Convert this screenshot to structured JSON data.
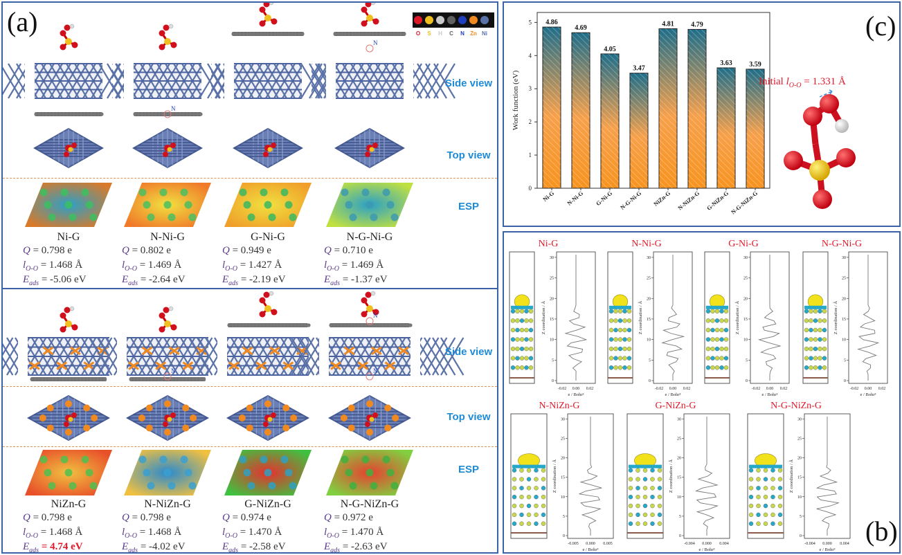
{
  "panel_a": {
    "letter": "(a)",
    "legend": {
      "elements": [
        {
          "symbol": "O",
          "color": "#e0192a"
        },
        {
          "symbol": "S",
          "color": "#f0c020"
        },
        {
          "symbol": "H",
          "color": "#c9c9c9"
        },
        {
          "symbol": "C",
          "color": "#606060"
        },
        {
          "symbol": "N",
          "color": "#1f3fbf"
        },
        {
          "symbol": "Zn",
          "color": "#f08a20"
        },
        {
          "symbol": "Ni",
          "color": "#5a72a8"
        }
      ]
    },
    "side_view_label": "Side view",
    "top_view_label": "Top view",
    "esp_label": "ESP",
    "n_marker": "N",
    "top_group": [
      {
        "name": "Ni-G",
        "q": "= 0.798 e",
        "l": "= 1.468 Å",
        "e": "= -5.06 eV",
        "hl": false
      },
      {
        "name": "N-Ni-G",
        "q": "= 0.802 e",
        "l": "= 1.469 Å",
        "e": "= -2.64 eV",
        "hl": false
      },
      {
        "name": "G-Ni-G",
        "q": "= 0.949 e",
        "l": "= 1.427 Å",
        "e": "= -2.19 eV",
        "hl": false
      },
      {
        "name": "N-G-Ni-G",
        "q": "= 0.710 e",
        "l": "= 1.469 Å",
        "e": "= -1.37 eV",
        "hl": false
      }
    ],
    "bottom_group": [
      {
        "name": "NiZn-G",
        "q": "= 0.798 e",
        "l": "= 1.468 Å",
        "e": "= 4.74 eV",
        "hl": true
      },
      {
        "name": "N-NiZn-G",
        "q": "= 0.798 e",
        "l": "= 1.468 Å",
        "e": "= -4.02 eV",
        "hl": false
      },
      {
        "name": "G-NiZn-G",
        "q": "= 0.974 e",
        "l": "= 1.470 Å",
        "e": "= -2.58 eV",
        "hl": false
      },
      {
        "name": "N-G-NiZn-G",
        "q": "= 0.972 e",
        "l": "= 1.470 Å",
        "e": "= -2.63 eV",
        "hl": false
      }
    ],
    "sym_q": "Q",
    "sym_l": "l",
    "sub_l": "O-O",
    "sym_e": "E",
    "sub_e": "ads"
  },
  "panel_c": {
    "letter": "(c)",
    "molecule_label_prefix": "Initial ",
    "molecule_label_sym": "l",
    "molecule_label_sub": "O-O",
    "molecule_label_value": " = 1.331 Å"
  },
  "panel_b": {
    "letter": "(b)",
    "row1": [
      "Ni-G",
      "N-Ni-G",
      "G-Ni-G",
      "N-G-Ni-G"
    ],
    "row2": [
      "N-NiZn-G",
      "G-NiZn-G",
      "N-G-NiZn-G"
    ],
    "ylabel": "Z coordination / Å",
    "xlabel": "e / Bohr³",
    "yticks": [
      "0",
      "5",
      "10",
      "15",
      "20",
      "25",
      "30"
    ],
    "xticks_row1": [
      "-0.02",
      "0.00",
      "0.02"
    ],
    "xticks_row2": [
      "-0.005",
      "0.000",
      "0.005"
    ],
    "xticks_row2b": [
      "-0.004",
      "0.000",
      "0.004"
    ]
  },
  "chart_data": {
    "type": "bar",
    "categories": [
      "Ni-G",
      "N-Ni-G",
      "G-Ni-G",
      "N-G-Ni-G",
      "NiZn-G",
      "N-NiZn-G",
      "G-NiZn-G",
      "N-G-NiZn-G"
    ],
    "values": [
      4.86,
      4.69,
      4.05,
      3.47,
      4.81,
      4.79,
      3.63,
      3.59
    ],
    "value_labels": [
      "4.86",
      "4.69",
      "4.05",
      "3.47",
      "4.81",
      "4.79",
      "3.63",
      "3.59"
    ],
    "ylabel": "Work function (eV)",
    "ylim": [
      0,
      5.3
    ],
    "yticks": [
      "0",
      "1",
      "2",
      "3",
      "4",
      "5"
    ],
    "grid": false,
    "colors": {
      "top": "#1f6e8a",
      "bottom": "#f7931e"
    }
  }
}
